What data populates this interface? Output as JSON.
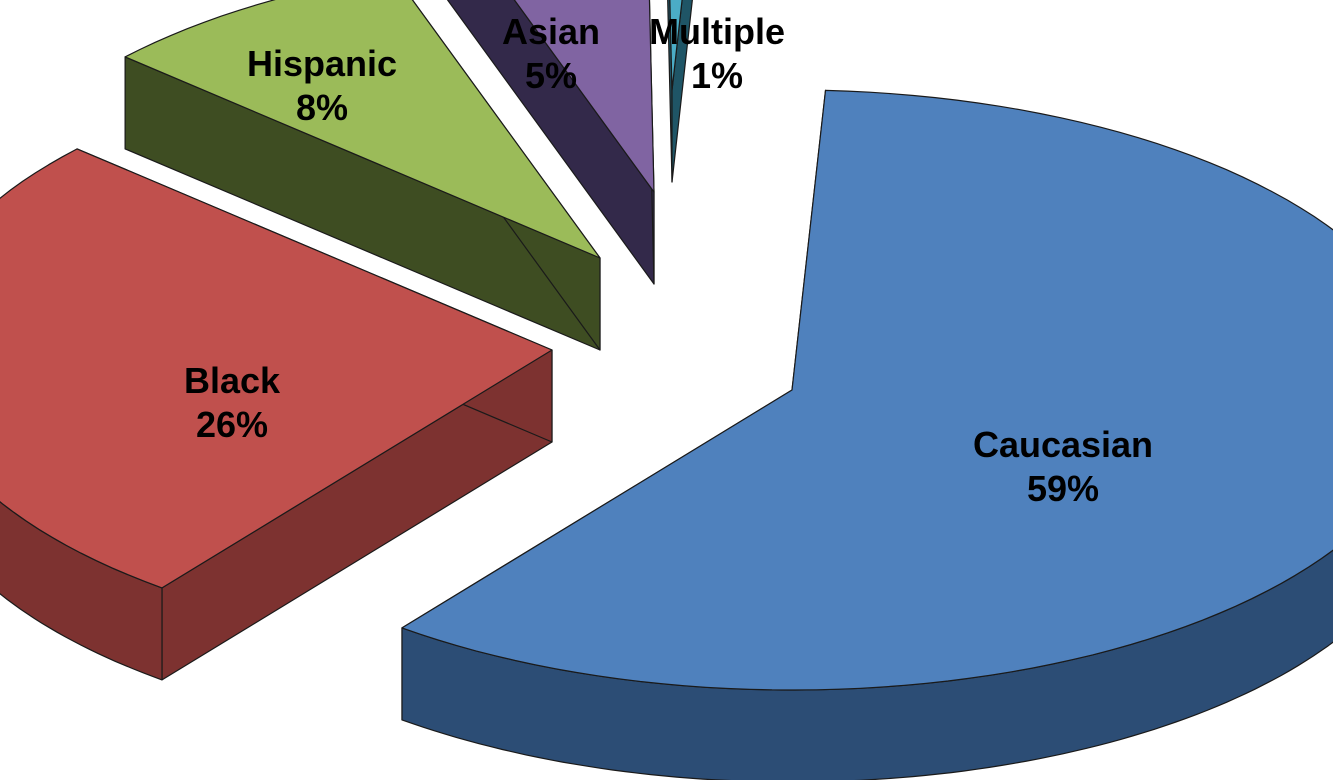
{
  "chart_data": {
    "type": "pie",
    "style": "3d-exploded",
    "slices": [
      {
        "label": "Caucasian",
        "value": 59,
        "value_label": "59%",
        "color": "#4f81bd",
        "side_color": "#2c4d75"
      },
      {
        "label": "Black",
        "value": 26,
        "value_label": "26%",
        "color": "#c0504d",
        "side_color": "#7d3230"
      },
      {
        "label": "Hispanic",
        "value": 8,
        "value_label": "8%",
        "color": "#9bbb59",
        "side_color": "#3e4d22"
      },
      {
        "label": "Asian",
        "value": 5,
        "value_label": "5%",
        "color": "#8064a2",
        "side_color": "#33294a"
      },
      {
        "label": "Multiple",
        "value": 1,
        "value_label": "1%",
        "color": "#4bacc6",
        "side_color": "#1f5566"
      }
    ]
  }
}
